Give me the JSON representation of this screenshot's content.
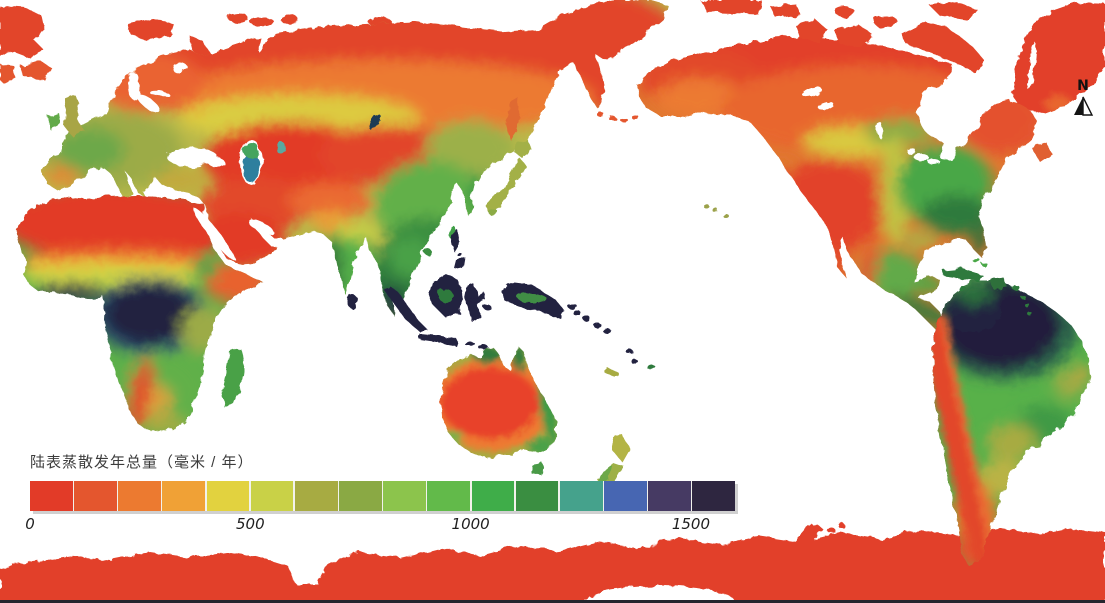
{
  "legend": {
    "title": "陆表蒸散发年总量（毫米 / 年）",
    "unit": "毫米/年",
    "max": 1600,
    "ticks": [
      {
        "label": "0",
        "value": 0
      },
      {
        "label": "500",
        "value": 500
      },
      {
        "label": "1000",
        "value": 1000
      },
      {
        "label": "1500",
        "value": 1500
      }
    ],
    "colors": [
      "#e23b28",
      "#e4562e",
      "#ec7a30",
      "#f0a136",
      "#e2d23f",
      "#c9d147",
      "#a7ab42",
      "#8aa944",
      "#8cc44c",
      "#62ba4a",
      "#3fad49",
      "#3a8e41",
      "#45a28c",
      "#4766b2",
      "#463a63",
      "#2e2640"
    ]
  },
  "compass": {
    "label": "N"
  },
  "chart_data": {
    "type": "heatmap",
    "title": "陆表蒸散发年总量（毫米 / 年）",
    "unit": "mm/year",
    "scale": {
      "min": 0,
      "max": 1600,
      "tick_values": [
        0,
        500,
        1000,
        1500
      ],
      "n_classes": 16,
      "class_width_mm": 100
    },
    "legend_position": "bottom-left",
    "map_style": "Pacific-centered world raster map, white ocean",
    "regions": [
      {
        "region": "Sahara and Arabian deserts",
        "approx_value_mm": "0-100"
      },
      {
        "region": "Central Asian deserts (Kazakhstan-Gobi)",
        "approx_value_mm": "0-200"
      },
      {
        "region": "Arctic coasts, Greenland, Antarctica",
        "approx_value_mm": "0-100"
      },
      {
        "region": "Australian interior",
        "approx_value_mm": "0-200"
      },
      {
        "region": "Andes coastal strip and Patagonia",
        "approx_value_mm": "100-300"
      },
      {
        "region": "Siberian and Canadian boreal zone",
        "approx_value_mm": "100-400"
      },
      {
        "region": "Europe",
        "approx_value_mm": "400-700"
      },
      {
        "region": "Eastern United States",
        "approx_value_mm": "600-1100"
      },
      {
        "region": "Eastern and southern China",
        "approx_value_mm": "600-1100"
      },
      {
        "region": "India and Indochina",
        "approx_value_mm": "700-1200"
      },
      {
        "region": "Sub-Saharan savannas and southern Africa",
        "approx_value_mm": "400-900"
      },
      {
        "region": "Congo Basin",
        "approx_value_mm": "1300-1600"
      },
      {
        "region": "Amazon Basin",
        "approx_value_mm": "1300-1600"
      },
      {
        "region": "Indonesia and New Guinea",
        "approx_value_mm": "1300-1600"
      }
    ]
  }
}
